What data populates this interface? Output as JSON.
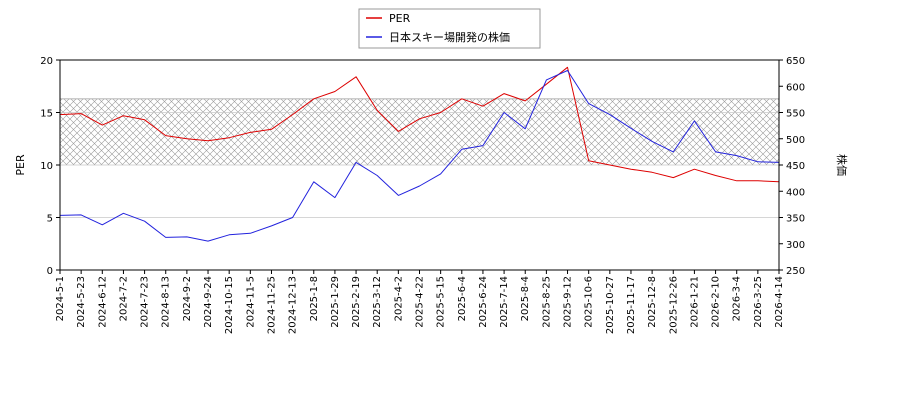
{
  "chart_data": {
    "type": "line",
    "legend": {
      "placement": "top-center",
      "entries": [
        "PER",
        "日本スキー場開発の株価"
      ]
    },
    "ylabel_left": "PER",
    "ylabel_right": "株価",
    "ylim_left": [
      0,
      20
    ],
    "ylim_right": [
      250,
      650
    ],
    "yticks_left": [
      0,
      5,
      10,
      15,
      20
    ],
    "yticks_right": [
      250,
      300,
      350,
      400,
      450,
      500,
      550,
      600,
      650
    ],
    "x_tick_labels": [
      "2024-5-1",
      "2024-5-23",
      "2024-6-12",
      "2024-7-2",
      "2024-7-23",
      "2024-8-13",
      "2024-9-2",
      "2024-9-24",
      "2024-10-15",
      "2024-11-5",
      "2024-11-25",
      "2024-12-13",
      "2025-1-8",
      "2025-1-29",
      "2025-2-19",
      "2025-3-12",
      "2025-4-2",
      "2025-4-22",
      "2025-5-15",
      "2025-6-4",
      "2025-6-24",
      "2025-7-14",
      "2025-8-4",
      "2025-8-25",
      "2025-9-12",
      "2025-10-6",
      "2025-10-27",
      "2025-11-17",
      "2025-12-8",
      "2025-12-26",
      "2026-1-21",
      "2026-2-10",
      "2026-3-4",
      "2026-3-25",
      "2026-4-14"
    ],
    "grid": true,
    "shaded_band_per": [
      10,
      16.3
    ],
    "colors": {
      "per": "#dd0000",
      "price": "#2222dd",
      "band_hatch": "#9a9a9a",
      "grid": "#c8c8c8"
    },
    "series": [
      {
        "name": "PER",
        "axis": "left",
        "x": [
          0,
          1,
          2,
          3,
          4,
          5,
          6,
          7,
          8,
          9,
          10,
          11,
          12,
          13,
          14,
          15,
          16,
          17,
          18,
          19,
          20,
          21,
          22,
          23,
          24,
          25,
          26,
          27,
          28,
          29,
          30,
          31,
          32,
          33,
          34
        ],
        "values": [
          14.8,
          14.9,
          13.8,
          14.7,
          14.3,
          12.8,
          12.5,
          12.3,
          12.6,
          13.1,
          13.4,
          14.8,
          16.3,
          17.0,
          18.4,
          15.2,
          13.2,
          14.4,
          15.0,
          16.3,
          15.6,
          16.8,
          16.1,
          17.7,
          19.3,
          10.4,
          10.0,
          9.6,
          9.3,
          8.8,
          9.6,
          9.0,
          8.5,
          8.5,
          8.4
        ]
      },
      {
        "name": "日本スキー場開発の株価",
        "axis": "right",
        "x": [
          0,
          1,
          2,
          3,
          4,
          5,
          6,
          7,
          8,
          9,
          10,
          11,
          12,
          13,
          14,
          15,
          16,
          17,
          18,
          19,
          20,
          21,
          22,
          23,
          24,
          25,
          26,
          27,
          28,
          29,
          30,
          31,
          32,
          33,
          34
        ],
        "values": [
          354,
          355,
          336,
          358,
          343,
          312,
          313,
          305,
          317,
          320,
          334,
          350,
          418,
          388,
          455,
          430,
          392,
          410,
          433,
          480,
          487,
          550,
          519,
          612,
          630,
          567,
          546,
          520,
          495,
          475,
          534,
          475,
          468,
          456,
          455
        ]
      }
    ]
  }
}
